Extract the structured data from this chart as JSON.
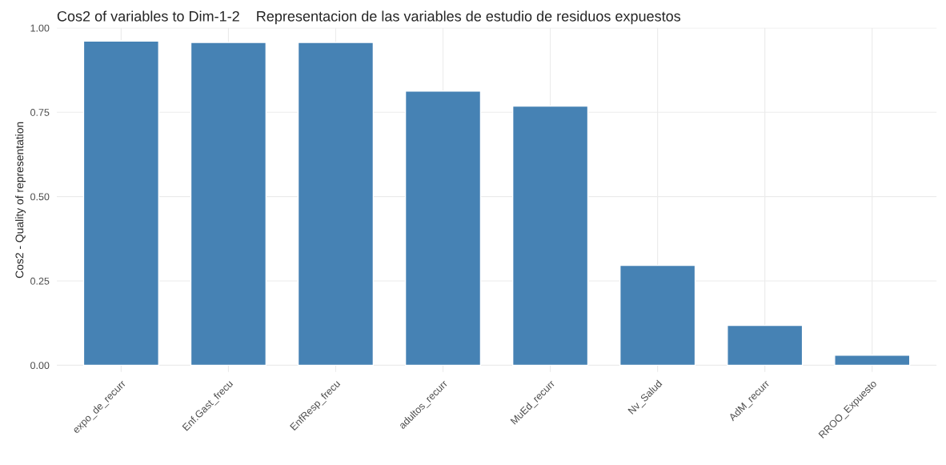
{
  "chart_data": {
    "type": "bar",
    "title": "Cos2 of variables to Dim-1-2    Representacion de las variables de estudio de residuos expuestos",
    "ylabel": "Cos2 - Quality of representation",
    "categories": [
      "expo_de_recurr",
      "Enf.Gast_frecu",
      "EnfResp_frecu",
      "adultos_recurr",
      "MuEd_recurr",
      "Nv_Salud",
      "AdM_recurr",
      "RROO_Expuesto"
    ],
    "values": [
      0.961,
      0.957,
      0.957,
      0.813,
      0.768,
      0.296,
      0.118,
      0.03
    ],
    "color": "#4682b4",
    "ylim": [
      -0.02,
      1.0
    ],
    "yticks": [
      {
        "value": 0,
        "label": "0.00"
      },
      {
        "value": 0.25,
        "label": "0.25"
      },
      {
        "value": 0.5,
        "label": "0.50"
      },
      {
        "value": 0.75,
        "label": "0.75"
      },
      {
        "value": 1.0,
        "label": "1.00"
      }
    ],
    "grid": true
  }
}
